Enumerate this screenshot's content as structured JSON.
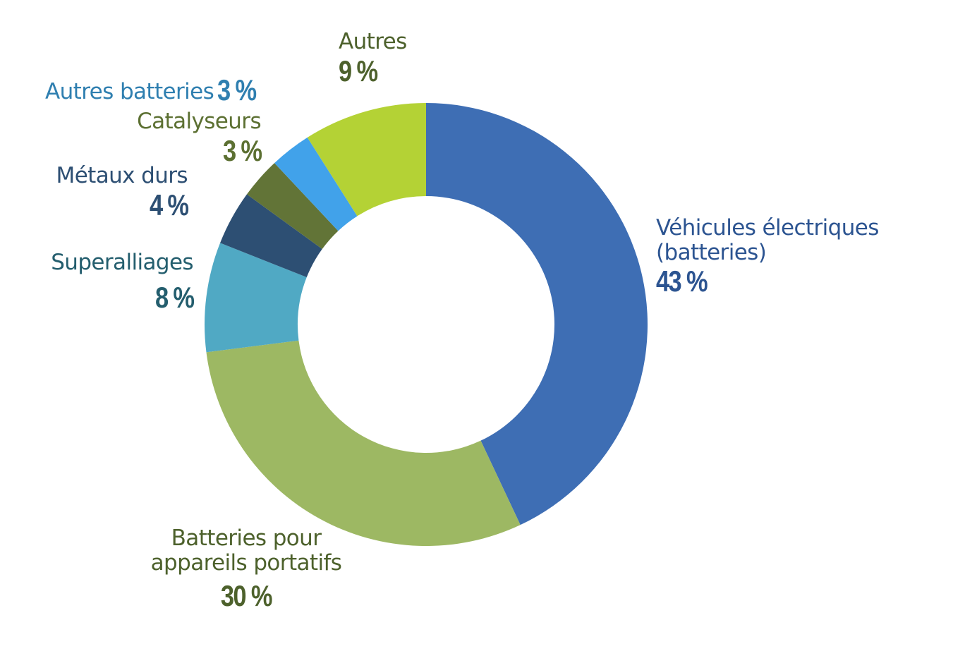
{
  "chart_data": {
    "type": "pie",
    "variant": "donut",
    "title": "",
    "start_angle_deg": 0,
    "direction": "clockwise",
    "unit": "%",
    "legend": "none (direct labels)",
    "slices": [
      {
        "label": "Véhicules électriques (batteries)",
        "value": 43,
        "color": "#3e6eb4",
        "text_color": "#2c5491"
      },
      {
        "label": "Batteries pour appareils portatifs",
        "value": 30,
        "color": "#9db863",
        "text_color": "#4d612c"
      },
      {
        "label": "Superalliages",
        "value": 8,
        "color": "#50a9c4",
        "text_color": "#245e6e"
      },
      {
        "label": "Métaux durs",
        "value": 4,
        "color": "#2d4f73",
        "text_color": "#2d4f73"
      },
      {
        "label": "Catalyseurs",
        "value": 3,
        "color": "#627437",
        "text_color": "#5c7032"
      },
      {
        "label": "Autres batteries",
        "value": 3,
        "color": "#41a2ea",
        "text_color": "#2f7fb0"
      },
      {
        "label": "Autres",
        "value": 9,
        "color": "#b4d235",
        "text_color": "#4d612c"
      }
    ]
  },
  "labels": {
    "ev": {
      "line1": "Véhicules électriques",
      "line2": "(batteries)",
      "pct": "43 %"
    },
    "portable": {
      "line1": "Batteries pour",
      "line2": "appareils portatifs",
      "pct": "30 %"
    },
    "superalloys": {
      "name": "Superalliages",
      "pct": "8 %"
    },
    "hardmetals": {
      "name": "Métaux durs",
      "pct": "4 %"
    },
    "catalysts": {
      "name": "Catalyseurs",
      "pct": "3 %"
    },
    "otherbatt": {
      "name": "Autres batteries",
      "pct": "3 %"
    },
    "other": {
      "name": "Autres",
      "pct": "9 %"
    }
  }
}
